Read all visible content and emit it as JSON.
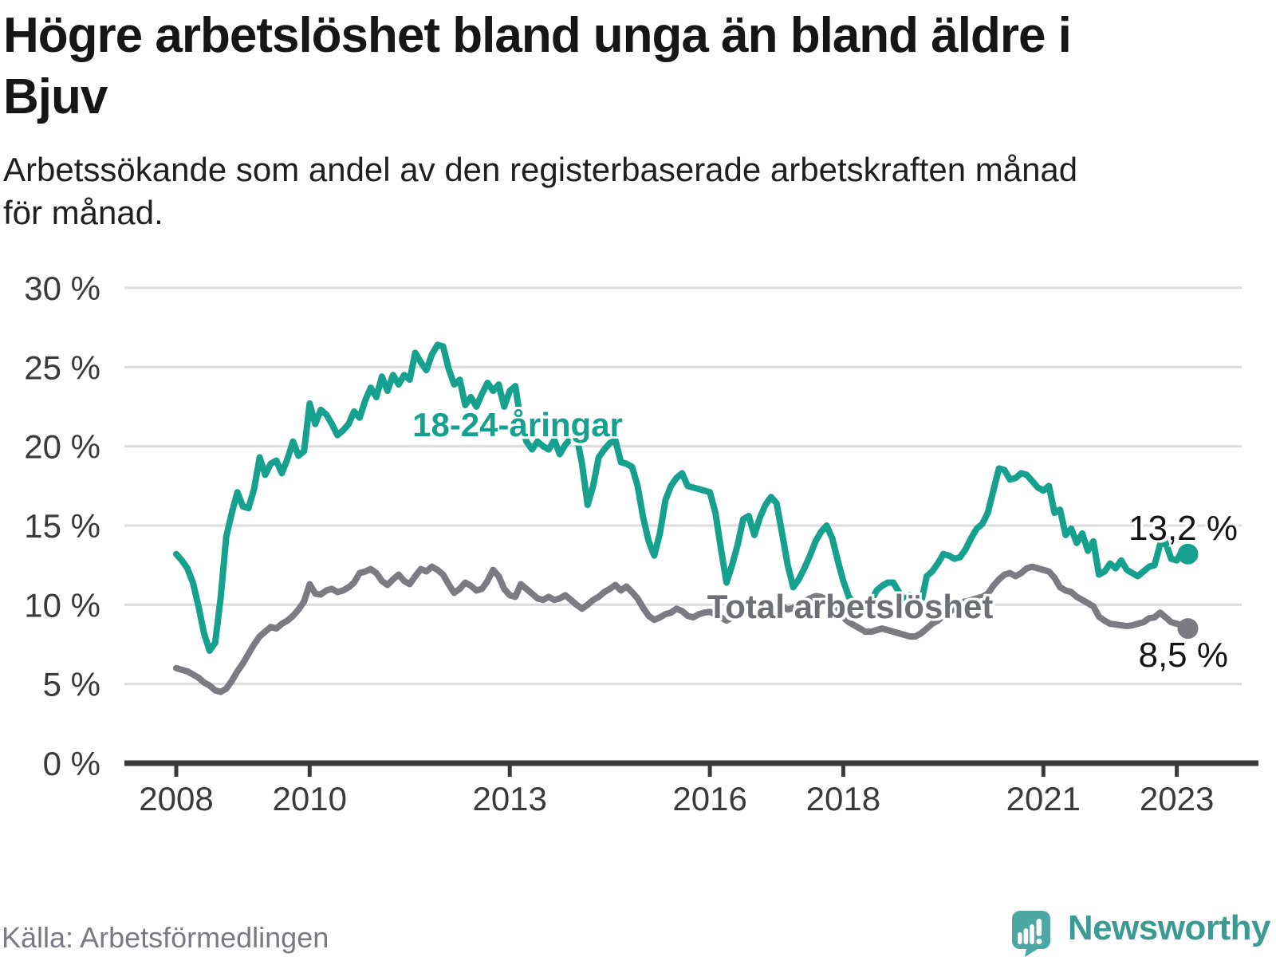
{
  "header": {
    "title_lines": [
      "Högre arbetslöshet bland unga än bland äldre i",
      "Bjuv"
    ],
    "subtitle_lines": [
      "Arbetssökande som andel av den registerbaserade arbetskraften månad",
      "för månad."
    ]
  },
  "source": "Källa: Arbetsförmedlingen",
  "brand": {
    "name": "Newsworthy"
  },
  "chart_data": {
    "type": "line",
    "title": "Högre arbetslöshet bland unga än bland äldre i Bjuv",
    "subtitle": "Arbetssökande som andel av den registerbaserade arbetskraften månad för månad.",
    "source": "Källa: Arbetsförmedlingen",
    "xlabel": "",
    "ylabel": "%",
    "ylim": [
      0,
      30
    ],
    "grid": "horizontal",
    "legend_position": "inline",
    "x_start": "2008-01",
    "x_end": "2023-03",
    "x_unit": "month",
    "yticks": [
      {
        "value": 0,
        "label": "0 %"
      },
      {
        "value": 5,
        "label": "5 %"
      },
      {
        "value": 10,
        "label": "10 %"
      },
      {
        "value": 15,
        "label": "15 %"
      },
      {
        "value": 20,
        "label": "20 %"
      },
      {
        "value": 25,
        "label": "25 %"
      },
      {
        "value": 30,
        "label": "30 %"
      }
    ],
    "xticks": [
      {
        "year": 2008,
        "label": "2008"
      },
      {
        "year": 2010,
        "label": "2010"
      },
      {
        "year": 2013,
        "label": "2013"
      },
      {
        "year": 2016,
        "label": "2016"
      },
      {
        "year": 2018,
        "label": "2018"
      },
      {
        "year": 2021,
        "label": "2021"
      },
      {
        "year": 2023,
        "label": "2023"
      }
    ],
    "series": [
      {
        "name": "Total arbetslöshet",
        "color": "#7b7b81",
        "end_label": "8,5 %",
        "end_value": 8.5,
        "values": [
          6.0,
          5.9,
          5.8,
          5.6,
          5.4,
          5.1,
          4.9,
          4.6,
          4.5,
          4.7,
          5.2,
          5.8,
          6.3,
          6.9,
          7.5,
          8.0,
          8.3,
          8.6,
          8.5,
          8.8,
          9.0,
          9.3,
          9.7,
          10.2,
          11.3,
          10.7,
          10.65,
          10.9,
          11.0,
          10.8,
          10.9,
          11.1,
          11.4,
          12.0,
          12.1,
          12.25,
          12.0,
          11.5,
          11.25,
          11.6,
          11.9,
          11.5,
          11.3,
          11.8,
          12.25,
          12.1,
          12.4,
          12.2,
          11.9,
          11.3,
          10.75,
          11.0,
          11.4,
          11.2,
          10.9,
          11.0,
          11.5,
          12.2,
          11.8,
          11.0,
          10.6,
          10.5,
          11.3,
          11.0,
          10.7,
          10.4,
          10.3,
          10.5,
          10.3,
          10.4,
          10.6,
          10.3,
          10.0,
          9.75,
          10.0,
          10.3,
          10.5,
          10.8,
          11.0,
          11.25,
          10.9,
          11.15,
          10.8,
          10.4,
          9.8,
          9.3,
          9.05,
          9.2,
          9.4,
          9.5,
          9.75,
          9.6,
          9.3,
          9.2,
          9.4,
          9.5,
          9.55,
          9.4,
          9.2,
          9.0,
          9.2,
          9.4,
          9.5,
          9.6,
          9.4,
          9.5,
          9.7,
          9.9,
          10.0,
          9.9,
          9.7,
          9.8,
          10.0,
          10.2,
          10.4,
          10.55,
          10.5,
          10.3,
          9.9,
          9.5,
          9.2,
          8.9,
          8.7,
          8.5,
          8.3,
          8.3,
          8.4,
          8.5,
          8.4,
          8.3,
          8.2,
          8.1,
          8.0,
          8.0,
          8.2,
          8.5,
          8.8,
          9.0,
          9.3,
          9.5,
          9.8,
          10.15,
          10.2,
          10.3,
          10.4,
          10.5,
          10.7,
          11.2,
          11.6,
          11.9,
          12.0,
          11.8,
          12.0,
          12.3,
          12.4,
          12.3,
          12.2,
          12.1,
          11.7,
          11.1,
          10.9,
          10.8,
          10.5,
          10.3,
          10.1,
          9.9,
          9.25,
          9.0,
          8.8,
          8.75,
          8.7,
          8.65,
          8.7,
          8.8,
          8.9,
          9.15,
          9.2,
          9.5,
          9.2,
          8.9,
          8.8,
          8.7,
          8.5
        ]
      },
      {
        "name": "18-24-åringar",
        "color": "#16a08e",
        "end_label": "13,2 %",
        "end_value": 13.2,
        "values": [
          13.2,
          12.8,
          12.3,
          11.4,
          9.9,
          8.2,
          7.1,
          7.6,
          10.5,
          14.3,
          15.8,
          17.1,
          16.2,
          16.1,
          17.3,
          19.3,
          18.2,
          18.9,
          19.1,
          18.3,
          19.2,
          20.3,
          19.4,
          19.7,
          22.7,
          21.4,
          22.3,
          22.0,
          21.4,
          20.7,
          21.0,
          21.4,
          22.2,
          21.8,
          22.9,
          23.7,
          23.1,
          24.4,
          23.5,
          24.5,
          23.9,
          24.5,
          24.2,
          25.9,
          25.3,
          24.8,
          25.8,
          26.4,
          26.3,
          24.9,
          23.9,
          24.2,
          22.6,
          23.1,
          22.5,
          23.3,
          24.0,
          23.5,
          23.9,
          22.5,
          23.5,
          23.8,
          21.5,
          20.3,
          19.8,
          20.3,
          20.0,
          19.8,
          20.4,
          19.5,
          20.1,
          20.5,
          20.7,
          18.9,
          16.3,
          17.5,
          19.3,
          19.8,
          20.2,
          20.4,
          19.0,
          18.9,
          18.7,
          17.5,
          15.5,
          14.0,
          13.1,
          14.5,
          16.6,
          17.5,
          18.0,
          18.3,
          17.5,
          17.4,
          17.3,
          17.2,
          17.1,
          15.8,
          13.5,
          11.4,
          12.5,
          13.8,
          15.4,
          15.6,
          14.4,
          15.5,
          16.3,
          16.8,
          16.4,
          14.5,
          12.5,
          11.1,
          11.6,
          12.3,
          13.1,
          14.0,
          14.6,
          15.0,
          14.2,
          12.8,
          11.5,
          10.5,
          10.1,
          9.9,
          9.6,
          10.2,
          10.9,
          11.2,
          11.4,
          11.4,
          10.8,
          10.3,
          10.6,
          10.3,
          10.1,
          11.8,
          12.1,
          12.6,
          13.2,
          13.1,
          12.9,
          13.0,
          13.5,
          14.2,
          14.8,
          15.1,
          15.8,
          17.2,
          18.6,
          18.5,
          17.9,
          18.0,
          18.3,
          18.2,
          17.8,
          17.4,
          17.2,
          17.5,
          15.8,
          16.0,
          14.4,
          14.8,
          13.9,
          14.5,
          13.4,
          14.0,
          11.9,
          12.1,
          12.6,
          12.3,
          12.8,
          12.2,
          12.0,
          11.8,
          12.1,
          12.4,
          12.5,
          13.8,
          13.9,
          12.9,
          12.8,
          13.4,
          13.2
        ]
      }
    ]
  }
}
